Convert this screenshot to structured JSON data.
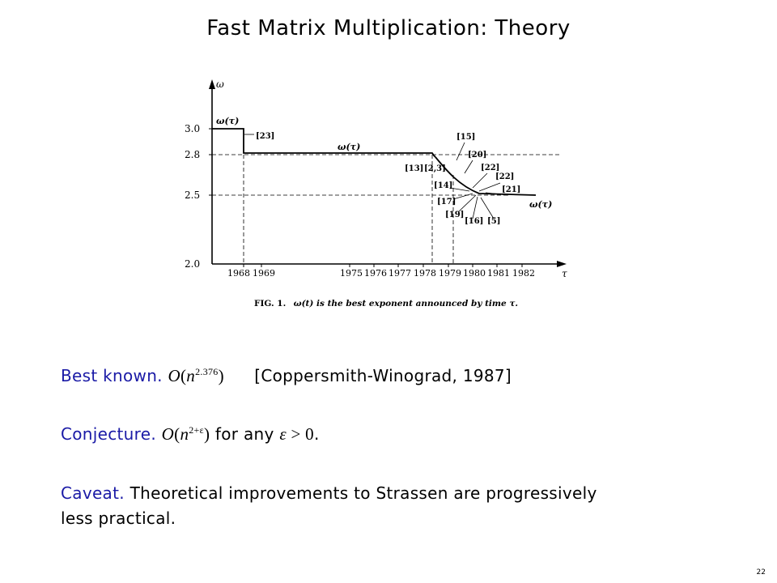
{
  "slide": {
    "title": "Fast Matrix Multiplication:  Theory",
    "page_number": "22"
  },
  "figure": {
    "y_axis_symbol": "ω",
    "x_axis_symbol": "τ",
    "y_ticks": [
      "3.0",
      "2.8",
      "2.5",
      "2.0"
    ],
    "x_ticks": [
      "1968",
      "1969",
      "1975",
      "1976",
      "1977",
      "1978",
      "1979",
      "1980",
      "1981",
      "1982"
    ],
    "curve_labels": [
      "ω(τ)",
      "ω(τ)",
      "ω(τ)"
    ],
    "refs": [
      "[23]",
      "[15]",
      "[20]",
      "[13]",
      "[2,3]",
      "[22]",
      "[22]",
      "[14]",
      "[21]",
      "[17]",
      "[19]",
      "[16]",
      "[5]"
    ],
    "caption_prefix": "FIG. 1.",
    "caption_text": "ω(t) is the best exponent announced by time τ."
  },
  "best_known": {
    "label": "Best known.",
    "O": "O",
    "n": "n",
    "exponent": "2.376",
    "citation": "[Coppersmith-Winograd, 1987]"
  },
  "conjecture": {
    "label": "Conjecture.",
    "O": "O",
    "n": "n",
    "exponent": "2+ε",
    "middle": " for any ",
    "epsilon": "ε",
    "condition": " > 0",
    "end": "."
  },
  "caveat": {
    "label": "Caveat.",
    "text_line1": "Theoretical improvements to Strassen are progressively",
    "text_line2": "less practical."
  }
}
